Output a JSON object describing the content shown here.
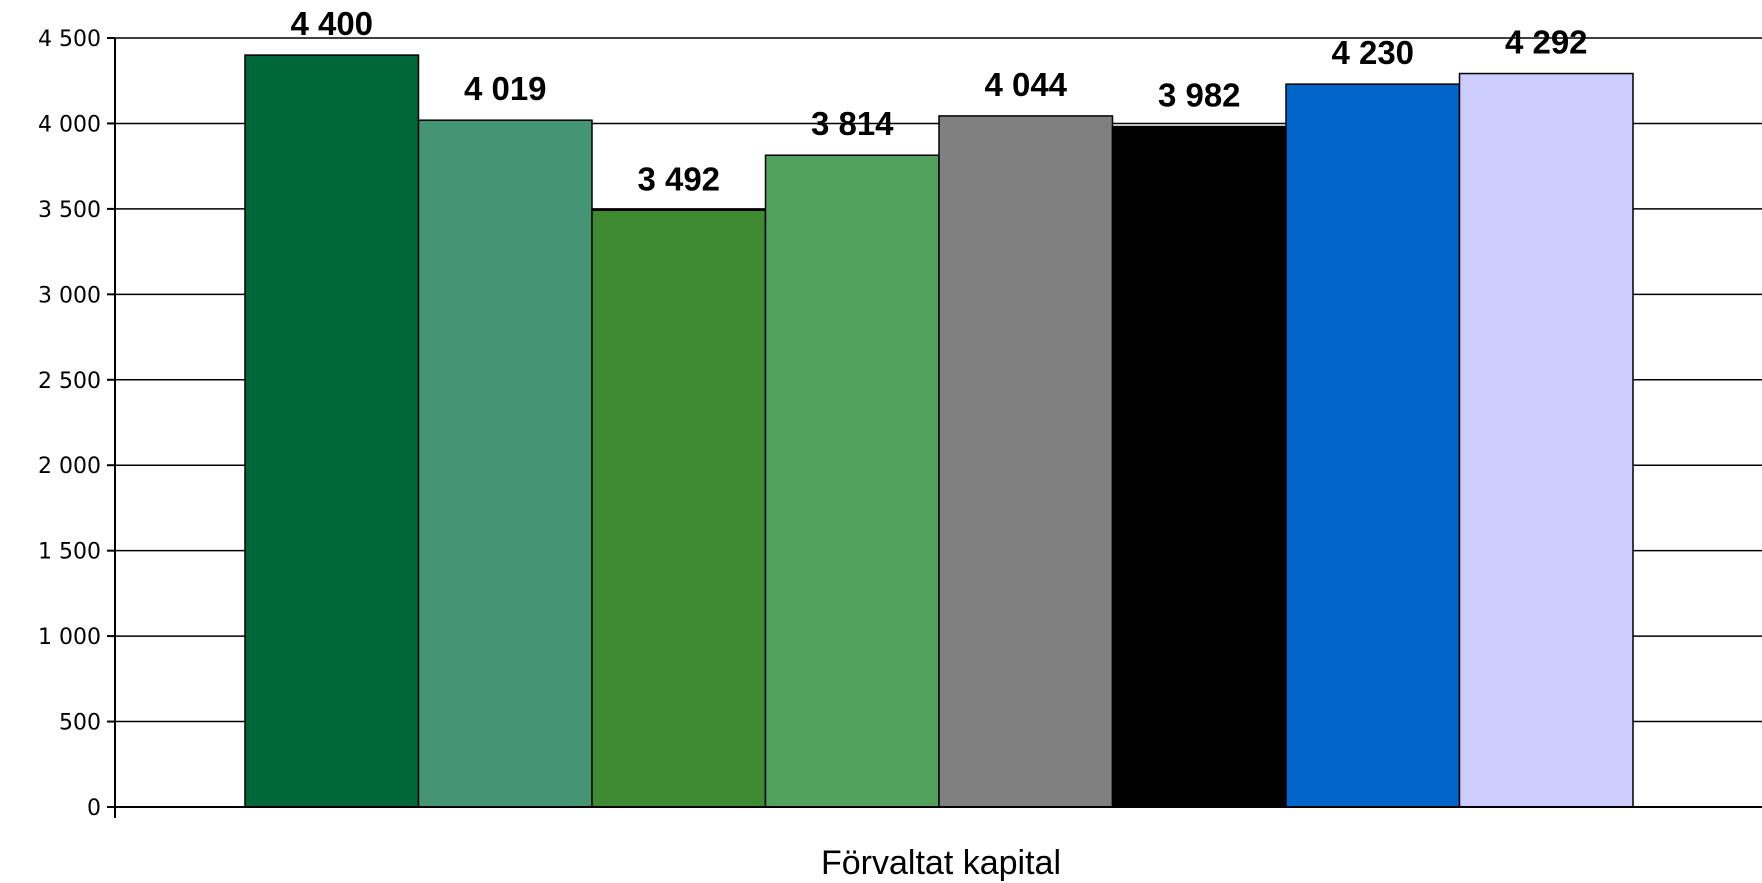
{
  "chart_data": {
    "type": "bar",
    "categories": [
      ""
    ],
    "xlabel": "Förvaltat kapital",
    "ylabel": "",
    "title": "",
    "ylim": [
      0,
      4500
    ],
    "yticks": [
      0,
      500,
      1000,
      1500,
      2000,
      2500,
      3000,
      3500,
      4000,
      4500
    ],
    "ytick_labels": [
      "0",
      "500",
      "1 000",
      "1 500",
      "2 000",
      "2 500",
      "3 000",
      "3 500",
      "4 000",
      "4 500"
    ],
    "grid": true,
    "legend": "none",
    "series": [
      {
        "values": [
          4400
        ],
        "label": "4 400",
        "color": "#006838"
      },
      {
        "values": [
          4019
        ],
        "label": "4 019",
        "color": "#439573"
      },
      {
        "values": [
          3492
        ],
        "label": "3 492",
        "color": "#3D8A30"
      },
      {
        "values": [
          3814
        ],
        "label": "3 814",
        "color": "#52A15C"
      },
      {
        "values": [
          4044
        ],
        "label": "4 044",
        "color": "#808080"
      },
      {
        "values": [
          3982
        ],
        "label": "3 982",
        "color": "#000000"
      },
      {
        "values": [
          4230
        ],
        "label": "4 230",
        "color": "#0066CC"
      },
      {
        "values": [
          4292
        ],
        "label": "4 292",
        "color": "#CCCCFF"
      }
    ]
  }
}
